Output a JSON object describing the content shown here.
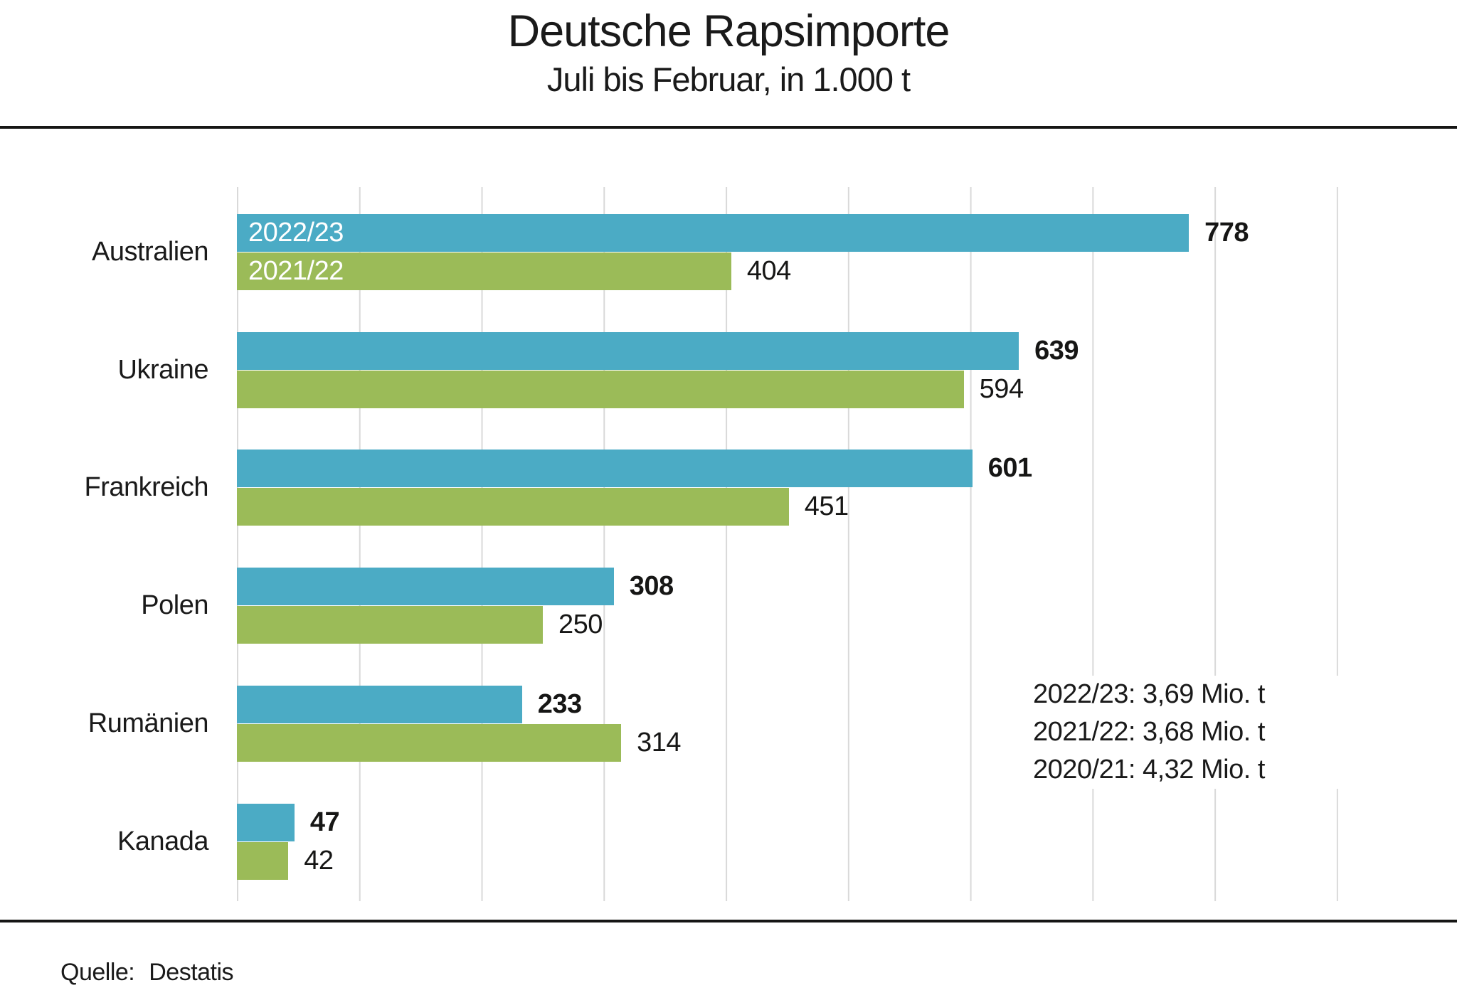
{
  "header": {
    "title": "Deutsche Rapsimporte",
    "subtitle": "Juli bis Februar, in 1.000 t"
  },
  "source": {
    "label": "Quelle:",
    "value": "Destatis"
  },
  "chart_data": {
    "type": "bar",
    "orientation": "horizontal",
    "title": "Deutsche Rapsimporte",
    "subtitle": "Juli bis Februar, in 1.000 t",
    "categories": [
      "Australien",
      "Ukraine",
      "Frankreich",
      "Polen",
      "Rumänien",
      "Kanada"
    ],
    "series": [
      {
        "name": "2022/23",
        "color": "#4babc5",
        "values": [
          778,
          639,
          601,
          308,
          233,
          47
        ]
      },
      {
        "name": "2021/22",
        "color": "#9bbb58",
        "values": [
          404,
          594,
          451,
          250,
          314,
          42
        ]
      }
    ],
    "xlim": [
      0,
      900
    ],
    "grid_step": 100,
    "grid": true,
    "gridline_color": "#d9d9d9",
    "value_label_position": "outside-end",
    "legend_position": "inside-first-bar-group",
    "annotations": [
      "2022/23: 3,69 Mio. t",
      "2021/22: 3,68 Mio. t",
      "2020/21: 4,32 Mio. t"
    ]
  }
}
